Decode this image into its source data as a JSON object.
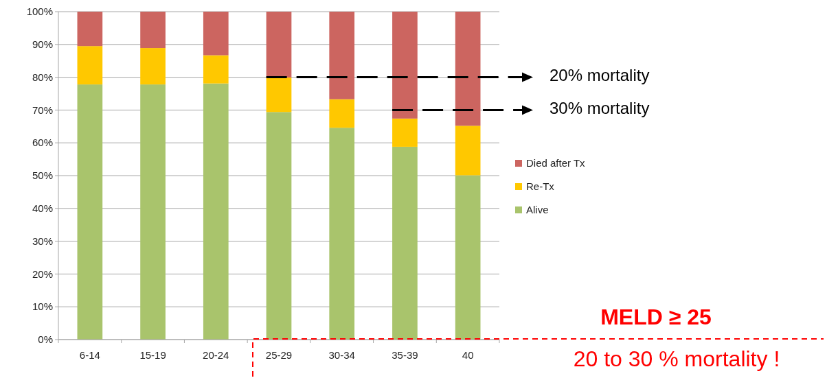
{
  "chart_data": {
    "type": "bar",
    "stacked": true,
    "categories": [
      "6-14",
      "15-19",
      "20-24",
      "25-29",
      "30-34",
      "35-39",
      "40"
    ],
    "series": [
      {
        "name": "Alive",
        "color": "#a9c46c",
        "values": [
          77.8,
          77.8,
          78.1,
          69.4,
          64.6,
          58.8,
          50.1
        ]
      },
      {
        "name": "Re-Tx",
        "color": "#ffc800",
        "values": [
          11.7,
          11.1,
          8.6,
          10.5,
          8.7,
          8.6,
          15.1
        ]
      },
      {
        "name": "Died after Tx",
        "color": "#cc6560",
        "values": [
          10.5,
          11.1,
          13.3,
          20.1,
          26.7,
          32.6,
          34.8
        ]
      }
    ],
    "ylim": [
      0,
      100
    ],
    "yticks": [
      {
        "value": 0,
        "label": "0%"
      },
      {
        "value": 10,
        "label": "10%"
      },
      {
        "value": 20,
        "label": "20%"
      },
      {
        "value": 30,
        "label": "30%"
      },
      {
        "value": 40,
        "label": "40%"
      },
      {
        "value": 50,
        "label": "50%"
      },
      {
        "value": 60,
        "label": "60%"
      },
      {
        "value": 70,
        "label": "70%"
      },
      {
        "value": 80,
        "label": "80%"
      },
      {
        "value": 90,
        "label": "90%"
      },
      {
        "value": 100,
        "label": "100%"
      }
    ],
    "grid": "y",
    "legend": "right",
    "ref_lines": [
      {
        "axis": "y",
        "value": 80,
        "label": "20% mortality",
        "color": "#000000",
        "line_style": "dashed"
      },
      {
        "axis": "y",
        "value": 70,
        "label": "30% mortality",
        "color": "#000000",
        "line_style": "dashed"
      }
    ],
    "annotations": [
      "MELD ≥ 25",
      "20 to 30 % mortality !"
    ]
  }
}
